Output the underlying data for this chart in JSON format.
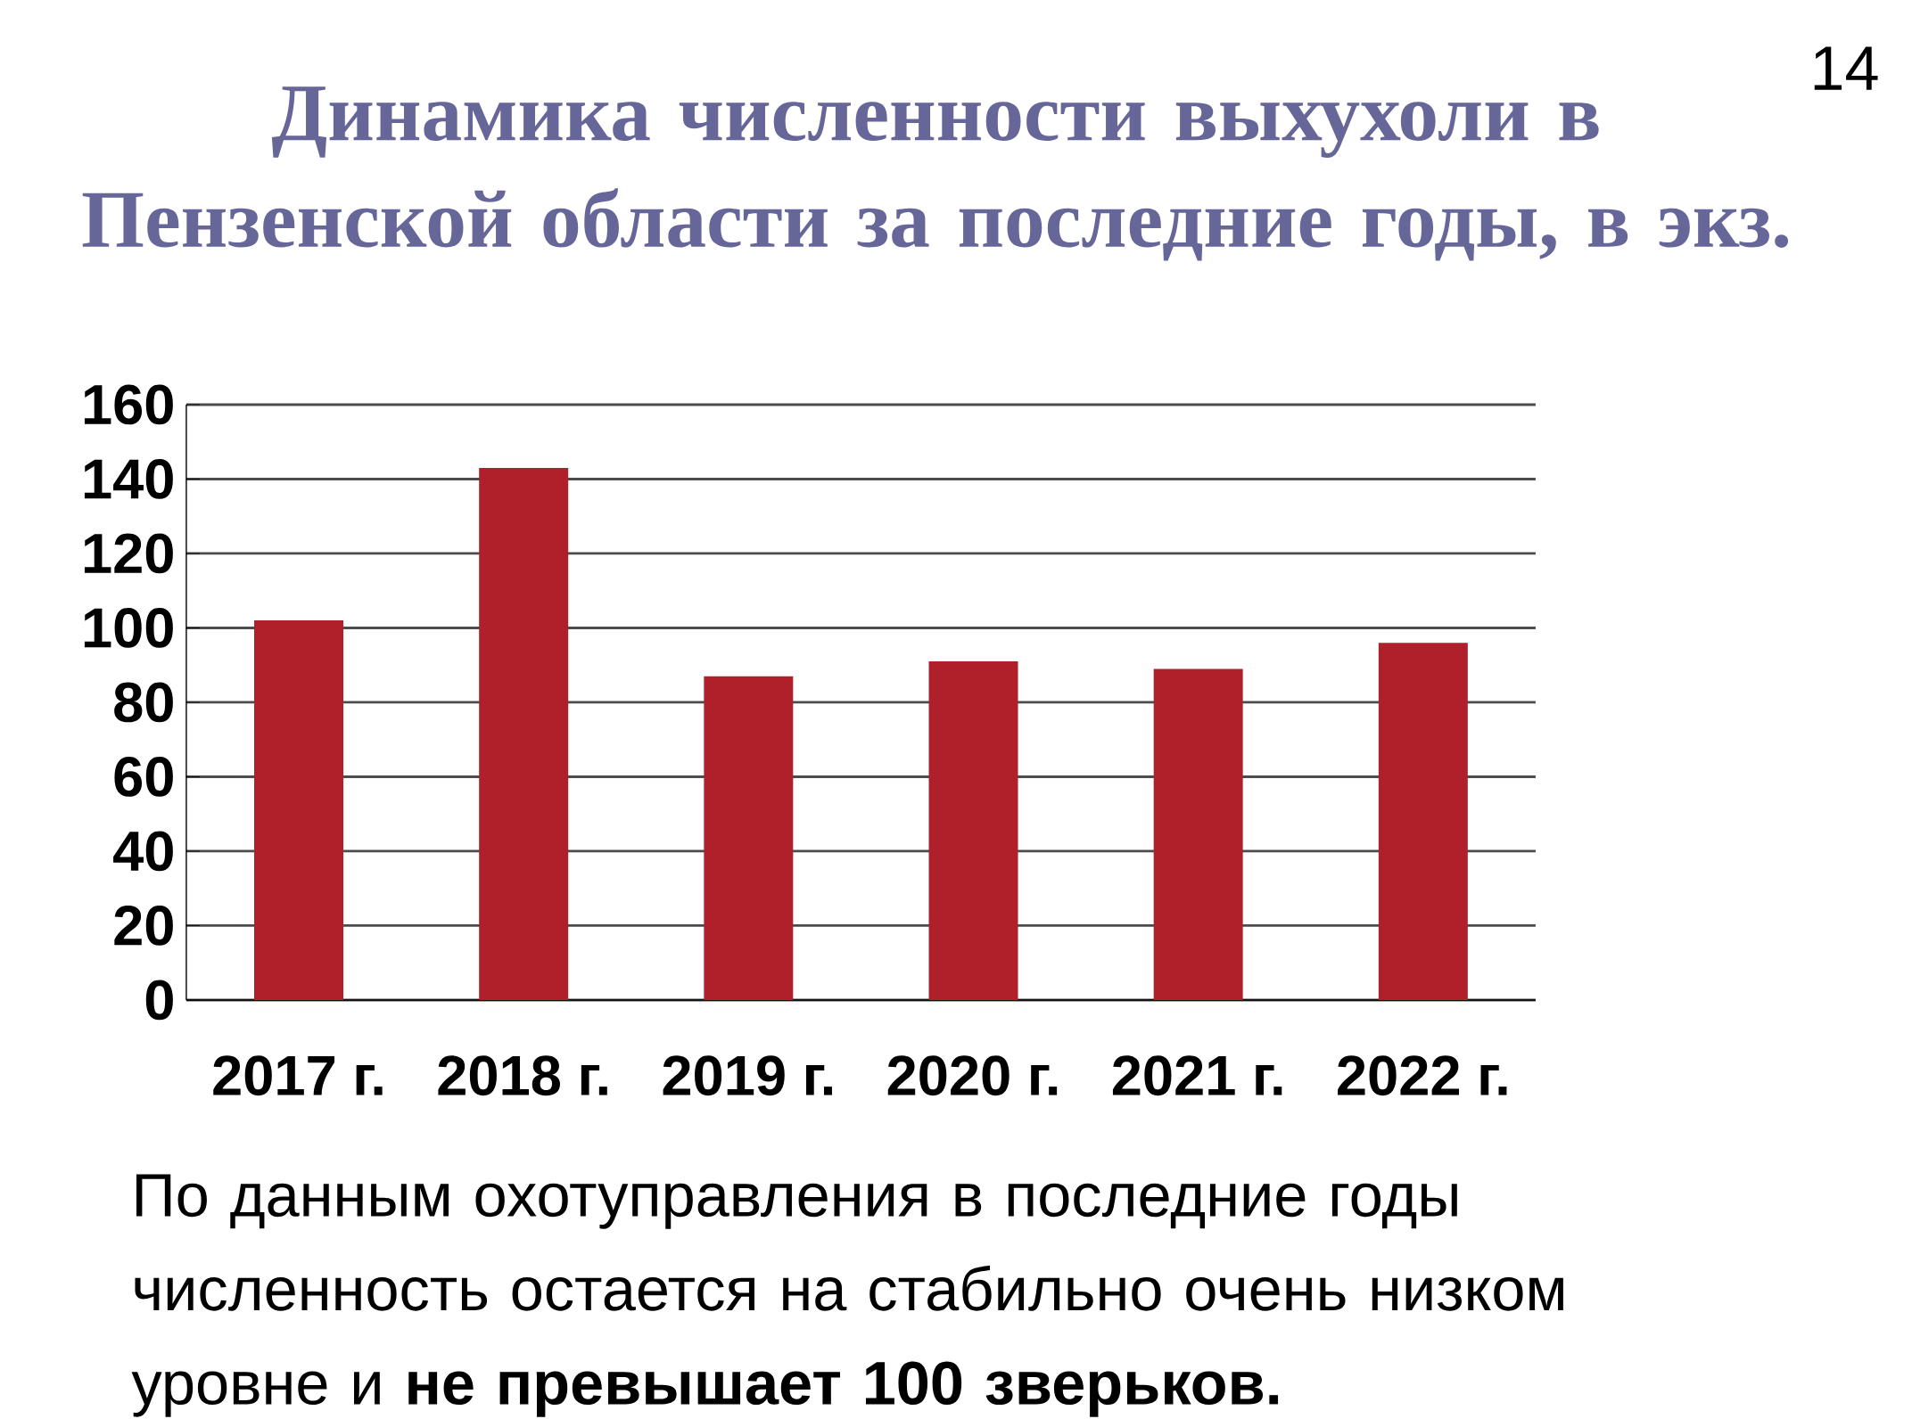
{
  "chart_data": {
    "type": "bar",
    "title": "Динамика численности выхухоли в Пензенской области за  последние годы, в экз.",
    "categories": [
      "2017 г.",
      "2018 г.",
      "2019 г.",
      "2020 г.",
      "2021 г.",
      "2022 г."
    ],
    "values": [
      102,
      143,
      87,
      91,
      89,
      96
    ],
    "color": "#b0202a",
    "ylim": [
      0,
      160
    ],
    "yticks": [
      0,
      20,
      40,
      60,
      80,
      100,
      120,
      140,
      160
    ],
    "grid": "y",
    "annotations": [
      "14",
      "По данным охотуправления в последние годы численность остается на стабильно очень низком уровне и **не превышает 100 зверьков.**"
    ]
  }
}
